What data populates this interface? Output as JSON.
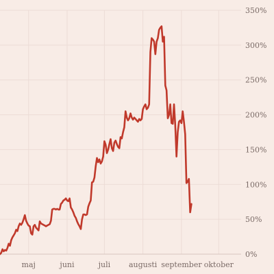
{
  "chart_data": {
    "type": "line",
    "title": "",
    "xlabel": "",
    "ylabel": "",
    "ylim": [
      0,
      350
    ],
    "grid": true,
    "legend": "none",
    "y_axis_side": "right",
    "y_ticks": [
      0,
      50,
      100,
      150,
      200,
      250,
      300,
      350
    ],
    "y_tick_labels": [
      "0%",
      "50%",
      "100%",
      "150%",
      "200%",
      "250%",
      "300%",
      "350%"
    ],
    "x_ticks": [
      {
        "label": "maj",
        "x": "2020-05-01"
      },
      {
        "label": "juni",
        "x": "2020-06-01"
      },
      {
        "label": "juli",
        "x": "2020-07-01"
      },
      {
        "label": "augusti",
        "x": "2020-08-01"
      },
      {
        "label": "september",
        "x": "2020-09-01"
      },
      {
        "label": "oktober",
        "x": "2020-10-01"
      }
    ],
    "xlim": [
      "2020-04-08",
      "2020-10-19"
    ],
    "series": [
      {
        "color": "#c0392b",
        "points": [
          [
            "2020-04-08",
            0
          ],
          [
            "2020-04-09",
            2
          ],
          [
            "2020-04-10",
            7
          ],
          [
            "2020-04-11",
            4
          ],
          [
            "2020-04-12",
            6
          ],
          [
            "2020-04-13",
            5
          ],
          [
            "2020-04-14",
            9
          ],
          [
            "2020-04-15",
            15
          ],
          [
            "2020-04-16",
            12
          ],
          [
            "2020-04-17",
            20
          ],
          [
            "2020-04-18",
            24
          ],
          [
            "2020-04-19",
            27
          ],
          [
            "2020-04-20",
            30
          ],
          [
            "2020-04-21",
            35
          ],
          [
            "2020-04-22",
            33
          ],
          [
            "2020-04-23",
            40
          ],
          [
            "2020-04-24",
            44
          ],
          [
            "2020-04-25",
            42
          ],
          [
            "2020-04-26",
            45
          ],
          [
            "2020-04-27",
            50
          ],
          [
            "2020-04-28",
            56
          ],
          [
            "2020-04-29",
            48
          ],
          [
            "2020-04-30",
            44
          ],
          [
            "2020-05-01",
            41
          ],
          [
            "2020-05-02",
            40
          ],
          [
            "2020-05-03",
            30
          ],
          [
            "2020-05-04",
            28
          ],
          [
            "2020-05-05",
            40
          ],
          [
            "2020-05-06",
            42
          ],
          [
            "2020-05-07",
            38
          ],
          [
            "2020-05-08",
            36
          ],
          [
            "2020-05-09",
            34
          ],
          [
            "2020-05-10",
            47
          ],
          [
            "2020-05-11",
            44
          ],
          [
            "2020-05-12",
            43
          ],
          [
            "2020-05-13",
            42
          ],
          [
            "2020-05-14",
            41
          ],
          [
            "2020-05-15",
            40
          ],
          [
            "2020-05-16",
            41
          ],
          [
            "2020-05-17",
            42
          ],
          [
            "2020-05-18",
            43
          ],
          [
            "2020-05-19",
            48
          ],
          [
            "2020-05-20",
            64
          ],
          [
            "2020-05-21",
            65
          ],
          [
            "2020-05-22",
            65
          ],
          [
            "2020-05-23",
            64
          ],
          [
            "2020-05-24",
            65
          ],
          [
            "2020-05-25",
            64
          ],
          [
            "2020-05-26",
            64
          ],
          [
            "2020-05-27",
            72
          ],
          [
            "2020-05-28",
            74
          ],
          [
            "2020-05-29",
            77
          ],
          [
            "2020-05-30",
            78
          ],
          [
            "2020-05-31",
            80
          ],
          [
            "2020-06-01",
            77
          ],
          [
            "2020-06-02",
            76
          ],
          [
            "2020-06-03",
            80
          ],
          [
            "2020-06-04",
            67
          ],
          [
            "2020-06-05",
            64
          ],
          [
            "2020-06-06",
            60
          ],
          [
            "2020-06-07",
            55
          ],
          [
            "2020-06-08",
            52
          ],
          [
            "2020-06-09",
            47
          ],
          [
            "2020-06-10",
            43
          ],
          [
            "2020-06-11",
            40
          ],
          [
            "2020-06-12",
            36
          ],
          [
            "2020-06-13",
            50
          ],
          [
            "2020-06-14",
            57
          ],
          [
            "2020-06-15",
            57
          ],
          [
            "2020-06-16",
            56
          ],
          [
            "2020-06-17",
            57
          ],
          [
            "2020-06-18",
            68
          ],
          [
            "2020-06-19",
            73
          ],
          [
            "2020-06-20",
            77
          ],
          [
            "2020-06-21",
            103
          ],
          [
            "2020-06-22",
            104
          ],
          [
            "2020-06-23",
            110
          ],
          [
            "2020-06-24",
            126
          ],
          [
            "2020-06-25",
            138
          ],
          [
            "2020-06-26",
            132
          ],
          [
            "2020-06-27",
            136
          ],
          [
            "2020-06-28",
            130
          ],
          [
            "2020-06-29",
            133
          ],
          [
            "2020-06-30",
            140
          ],
          [
            "2020-07-01",
            162
          ],
          [
            "2020-07-02",
            157
          ],
          [
            "2020-07-03",
            145
          ],
          [
            "2020-07-04",
            150
          ],
          [
            "2020-07-05",
            158
          ],
          [
            "2020-07-06",
            165
          ],
          [
            "2020-07-07",
            152
          ],
          [
            "2020-07-08",
            148
          ],
          [
            "2020-07-09",
            160
          ],
          [
            "2020-07-10",
            163
          ],
          [
            "2020-07-11",
            158
          ],
          [
            "2020-07-12",
            154
          ],
          [
            "2020-07-13",
            152
          ],
          [
            "2020-07-14",
            168
          ],
          [
            "2020-07-15",
            166
          ],
          [
            "2020-07-16",
            175
          ],
          [
            "2020-07-17",
            182
          ],
          [
            "2020-07-18",
            205
          ],
          [
            "2020-07-19",
            196
          ],
          [
            "2020-07-20",
            192
          ],
          [
            "2020-07-21",
            195
          ],
          [
            "2020-07-22",
            202
          ],
          [
            "2020-07-23",
            196
          ],
          [
            "2020-07-24",
            193
          ],
          [
            "2020-07-25",
            196
          ],
          [
            "2020-07-26",
            194
          ],
          [
            "2020-07-27",
            192
          ],
          [
            "2020-07-28",
            190
          ],
          [
            "2020-07-29",
            194
          ],
          [
            "2020-07-30",
            192
          ],
          [
            "2020-07-31",
            194
          ],
          [
            "2020-08-01",
            208
          ],
          [
            "2020-08-02",
            212
          ],
          [
            "2020-08-03",
            215
          ],
          [
            "2020-08-04",
            208
          ],
          [
            "2020-08-05",
            210
          ],
          [
            "2020-08-06",
            215
          ],
          [
            "2020-08-07",
            290
          ],
          [
            "2020-08-08",
            310
          ],
          [
            "2020-08-09",
            308
          ],
          [
            "2020-08-10",
            305
          ],
          [
            "2020-08-11",
            287
          ],
          [
            "2020-08-12",
            305
          ],
          [
            "2020-08-13",
            310
          ],
          [
            "2020-08-14",
            322
          ],
          [
            "2020-08-15",
            325
          ],
          [
            "2020-08-16",
            327
          ],
          [
            "2020-08-17",
            305
          ],
          [
            "2020-08-18",
            312
          ],
          [
            "2020-08-19",
            242
          ],
          [
            "2020-08-20",
            235
          ],
          [
            "2020-08-21",
            195
          ],
          [
            "2020-08-22",
            200
          ],
          [
            "2020-08-23",
            215
          ],
          [
            "2020-08-24",
            188
          ],
          [
            "2020-08-25",
            187
          ],
          [
            "2020-08-26",
            215
          ],
          [
            "2020-08-27",
            185
          ],
          [
            "2020-08-28",
            140
          ],
          [
            "2020-08-29",
            175
          ],
          [
            "2020-08-30",
            190
          ],
          [
            "2020-08-31",
            192
          ],
          [
            "2020-09-01",
            188
          ],
          [
            "2020-09-02",
            205
          ],
          [
            "2020-09-03",
            190
          ],
          [
            "2020-09-04",
            172
          ],
          [
            "2020-09-05",
            102
          ],
          [
            "2020-09-06",
            104
          ],
          [
            "2020-09-07",
            108
          ],
          [
            "2020-09-08",
            60
          ],
          [
            "2020-09-09",
            72
          ]
        ]
      }
    ]
  }
}
